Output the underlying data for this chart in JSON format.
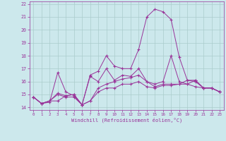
{
  "xlabel": "Windchill (Refroidissement éolien,°C)",
  "background_color": "#cce8ec",
  "grid_color": "#aacccc",
  "line_color": "#993399",
  "x_hours": [
    0,
    1,
    2,
    3,
    4,
    5,
    6,
    7,
    8,
    9,
    10,
    11,
    12,
    13,
    14,
    15,
    16,
    17,
    18,
    19,
    20,
    21,
    22,
    23
  ],
  "ylim": [
    13.8,
    22.2
  ],
  "yticks": [
    14,
    15,
    16,
    17,
    18,
    19,
    20,
    21,
    22
  ],
  "xtick_labels": [
    "0",
    "1",
    "2",
    "3",
    "4",
    "5",
    "6",
    "7",
    "8",
    "9",
    "10",
    "11",
    "12",
    "13",
    "14",
    "15",
    "16",
    "17",
    "18",
    "19",
    "20",
    "21",
    "22",
    "23"
  ],
  "series": [
    [
      14.8,
      14.3,
      14.4,
      16.7,
      15.2,
      14.9,
      14.2,
      16.4,
      16.0,
      17.0,
      16.1,
      16.5,
      16.4,
      17.0,
      16.0,
      15.6,
      15.8,
      15.8,
      15.8,
      16.1,
      16.0,
      15.5,
      15.5,
      15.2
    ],
    [
      14.8,
      14.3,
      14.5,
      15.0,
      14.8,
      14.8,
      14.2,
      14.5,
      15.2,
      15.5,
      15.5,
      15.8,
      15.8,
      16.0,
      15.6,
      15.5,
      15.7,
      15.7,
      15.8,
      15.8,
      15.6,
      15.5,
      15.5,
      15.2
    ],
    [
      14.8,
      14.3,
      14.5,
      15.1,
      14.9,
      15.0,
      14.2,
      16.5,
      16.8,
      18.0,
      17.2,
      17.0,
      17.0,
      18.5,
      21.0,
      21.6,
      21.4,
      20.8,
      17.9,
      16.1,
      16.1,
      15.5,
      15.5,
      15.2
    ],
    [
      14.8,
      14.3,
      14.5,
      14.5,
      14.9,
      15.0,
      14.2,
      14.5,
      15.5,
      15.8,
      16.0,
      16.2,
      16.3,
      16.5,
      16.0,
      15.8,
      16.0,
      18.0,
      16.0,
      15.8,
      16.1,
      15.5,
      15.5,
      15.2
    ]
  ]
}
